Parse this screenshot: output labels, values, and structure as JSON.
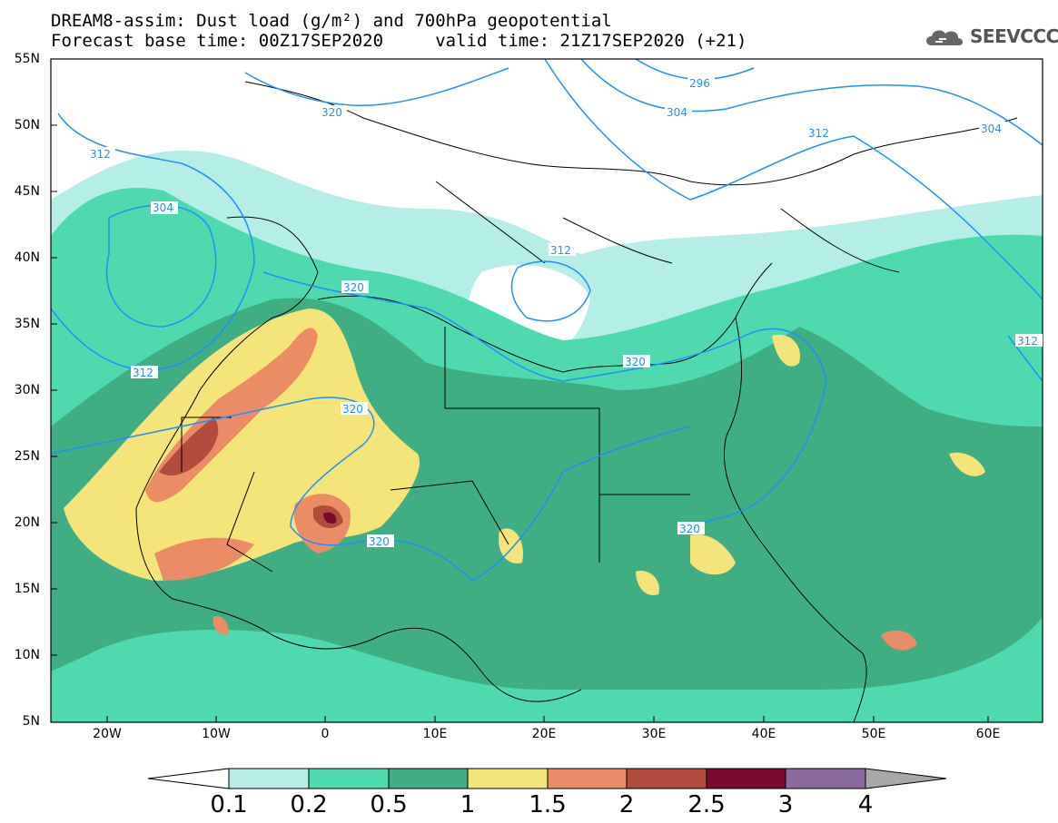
{
  "title": {
    "line1": "DREAM8-assim: Dust load (g/m²) and 700hPa geopotential",
    "line2": "Forecast base time: 00Z17SEP2020     valid time: 21Z17SEP2020 (+21)"
  },
  "logo": {
    "text": "SEEVCCC",
    "icon": "cloud-icon"
  },
  "axes": {
    "lat_labels": [
      "55N",
      "50N",
      "45N",
      "40N",
      "35N",
      "30N",
      "25N",
      "20N",
      "15N",
      "10N",
      "5N"
    ],
    "lon_labels": [
      "20W",
      "10W",
      "0",
      "10E",
      "20E",
      "30E",
      "40E",
      "50E",
      "60E"
    ]
  },
  "contour_labels": [
    "296",
    "304",
    "304",
    "304",
    "312",
    "312",
    "312",
    "312",
    "312",
    "320",
    "320",
    "320",
    "320",
    "320",
    "320"
  ],
  "colorbar": {
    "ticks": [
      "0.1",
      "0.2",
      "0.5",
      "1",
      "1.5",
      "2",
      "2.5",
      "3",
      "4"
    ],
    "colors": [
      "#b4eee6",
      "#4ed9ae",
      "#3faf83",
      "#f5e47a",
      "#ea8c65",
      "#b24c3c",
      "#7a0a2e",
      "#8a6aa0",
      "#a8a8a8"
    ]
  },
  "colors": {
    "contour": "#1e90ff",
    "border": "#000000"
  }
}
